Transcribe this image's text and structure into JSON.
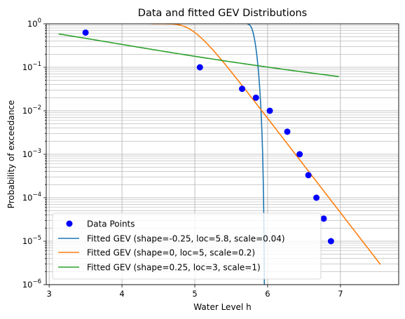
{
  "chart_data": {
    "type": "scatter",
    "title": "Data and fitted GEV Distributions",
    "xlabel": "Water Level h",
    "ylabel": "Probability of exceedance",
    "xlim": [
      2.96,
      7.8
    ],
    "ylim": [
      1e-06,
      1
    ],
    "yscale": "log",
    "grid": "major and minor",
    "legend_position": "lower-left",
    "x_ticks": [
      3,
      4,
      5,
      6,
      7
    ],
    "x_tick_labels": [
      "3",
      "4",
      "5",
      "6",
      "7"
    ],
    "y_ticks": [
      1e-06,
      1e-05,
      0.0001,
      0.001,
      0.01,
      0.1,
      1
    ],
    "y_tick_labels": [
      {
        "base": "10",
        "exp": "−6"
      },
      {
        "base": "10",
        "exp": "−5"
      },
      {
        "base": "10",
        "exp": "−4"
      },
      {
        "base": "10",
        "exp": "−3"
      },
      {
        "base": "10",
        "exp": "−2"
      },
      {
        "base": "10",
        "exp": "−1"
      },
      {
        "base": "10",
        "exp": "0"
      }
    ],
    "points": {
      "name": "Data Points",
      "color": "#0000ff",
      "x": [
        3.5,
        5.07,
        5.65,
        5.84,
        6.03,
        6.27,
        6.44,
        6.56,
        6.67,
        6.77,
        6.87
      ],
      "y": [
        0.63,
        0.1,
        0.032,
        0.02,
        0.01,
        0.0033,
        0.001,
        0.00033,
        0.0001,
        3.3e-05,
        1e-05
      ]
    },
    "series": [
      {
        "name": "Fitted GEV (shape=-0.25, loc=5.8, scale=0.04)",
        "color": "#1f77b4",
        "shape": -0.25,
        "loc": 5.8,
        "scale": 0.04,
        "x_range": [
          5.72,
          7.55
        ]
      },
      {
        "name": "Fitted GEV (shape=0, loc=5, scale=0.2)",
        "color": "#ff7f0e",
        "shape": 0,
        "loc": 5,
        "scale": 0.2,
        "x_range": [
          4.4,
          7.55
        ]
      },
      {
        "name": "Fitted GEV (shape=0.25, loc=3, scale=1)",
        "color": "#2ca02c",
        "shape": 0.25,
        "loc": 3,
        "scale": 1,
        "x_range": [
          3.13,
          6.98
        ]
      }
    ]
  }
}
